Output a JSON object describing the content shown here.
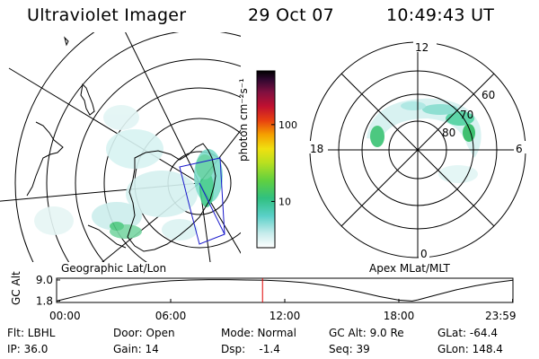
{
  "header": {
    "title": "Ultraviolet Imager",
    "date": "29 Oct 07",
    "time": "10:49:43 UT"
  },
  "colorbar": {
    "label": "photon cm⁻²s⁻¹",
    "ticks": [
      "100",
      "10"
    ],
    "tick_values": [
      100,
      10
    ],
    "range": [
      2.5,
      500
    ],
    "scale": "log"
  },
  "left_panel": {
    "caption": "Geographic Lat/Lon"
  },
  "right_panel": {
    "caption": "Apex MLat/MLT",
    "mlt_labels": {
      "top": "12",
      "right": "6",
      "bottom": "0",
      "left": "18"
    },
    "lat_labels": [
      "60",
      "70",
      "80"
    ]
  },
  "altitude_plot": {
    "ylabel": "GC Alt",
    "yticks": [
      "9.0",
      "1.8"
    ],
    "ytick_values": [
      9.0,
      1.8
    ],
    "xticks": [
      "00:00",
      "06:00",
      "12:00",
      "18:00",
      "23:59"
    ],
    "x_hours": [
      0,
      6,
      12,
      18,
      23.98
    ],
    "current_time_hours": 10.83,
    "orbit": {
      "x_hours": [
        0,
        1,
        2,
        3,
        4,
        5,
        6,
        7,
        8,
        9,
        10,
        11,
        12,
        13,
        14,
        15,
        16,
        17,
        18,
        18.7,
        19,
        20,
        21,
        22,
        23,
        23.98
      ],
      "alt_re": [
        1.8,
        3.4,
        4.9,
        6.3,
        7.4,
        8.2,
        8.7,
        9.0,
        9.1,
        9.1,
        9.0,
        8.9,
        8.6,
        8.1,
        7.3,
        6.2,
        4.8,
        3.3,
        2.1,
        1.8,
        2.2,
        3.9,
        5.6,
        7.0,
        8.1,
        8.9
      ]
    }
  },
  "status": {
    "flt": "Flt: LBHL",
    "ip": "IP: 36.0",
    "door": "Door: Open",
    "gain": "Gain: 14",
    "mode": "Mode: Normal",
    "dsp": "Dsp:    -1.4",
    "gcalt": "GC Alt: 9.0 Re",
    "seq": "Seq: 39",
    "glat": "GLat: -64.4",
    "glon": "GLon: 148.4"
  }
}
